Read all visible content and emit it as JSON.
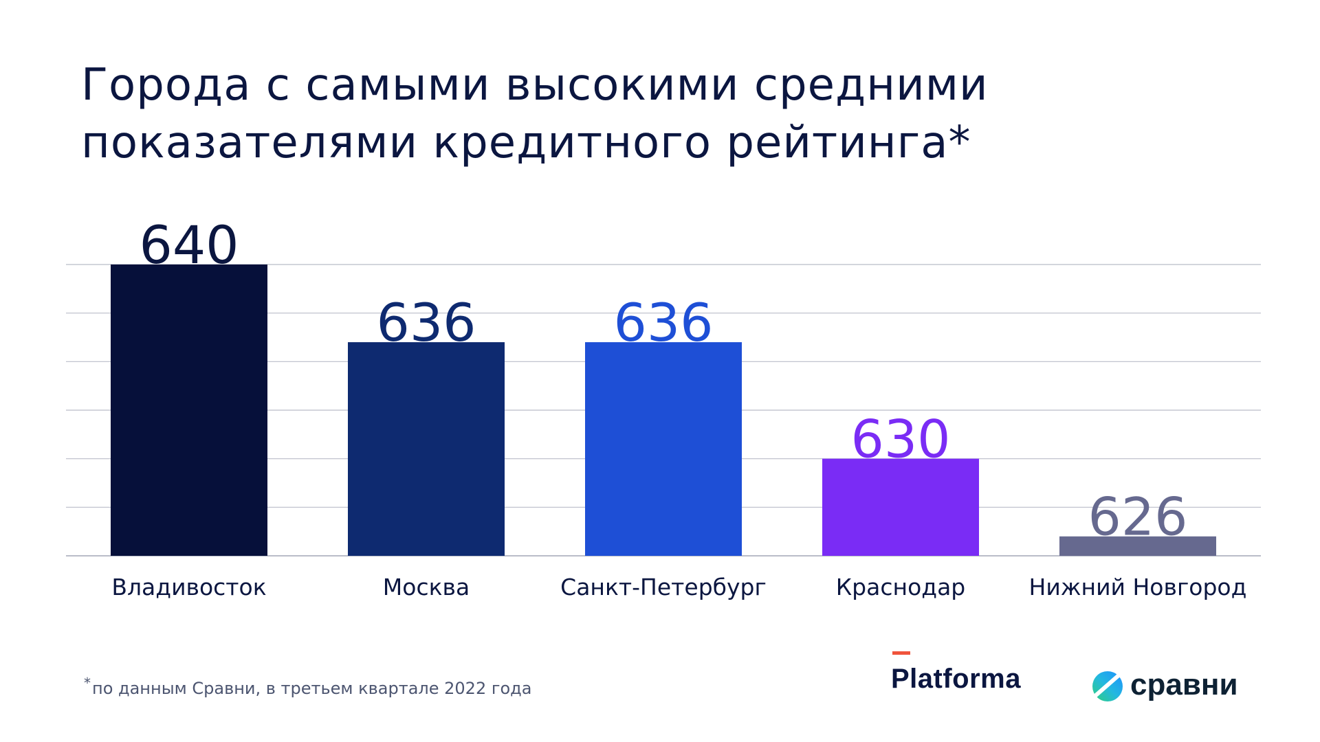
{
  "title": {
    "line1": "Города с самыми высокими средними",
    "line2": "показателями кредитного рейтинга*"
  },
  "chart_data": {
    "type": "bar",
    "title": "Города с самыми высокими средними показателями кредитного рейтинга*",
    "categories": [
      "Владивосток",
      "Москва",
      "Санкт-Петербург",
      "Краснодар",
      "Нижний Новгород"
    ],
    "values": [
      640,
      636,
      636,
      630,
      626
    ],
    "bar_colors": [
      "#06103a",
      "#0e2a70",
      "#1e4fd6",
      "#7a2cf5",
      "#66698f"
    ],
    "label_colors": [
      "#0b1640",
      "#0e2a70",
      "#1e4fd6",
      "#7a2cf5",
      "#66698f"
    ],
    "ylim": [
      625,
      640
    ],
    "xlabel": "",
    "ylabel": "",
    "grid": true
  },
  "footnote": {
    "marker": "*",
    "text": "по данным Сравни, в третьем квартале 2022 года"
  },
  "logos": {
    "platforma": "Platforma",
    "sravni": "сравни"
  },
  "colors": {
    "title": "#0b1640",
    "grid": "#b9bcc8",
    "platforma_accent": "#f0543c"
  }
}
